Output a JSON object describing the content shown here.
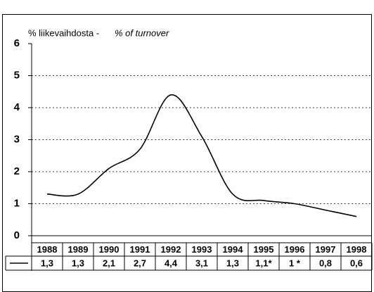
{
  "chart_data": {
    "type": "line",
    "title": "% liikevaihdosta -",
    "subtitle": "% of turnover",
    "categories": [
      "1988",
      "1989",
      "1990",
      "1991",
      "1992",
      "1993",
      "1994",
      "1995",
      "1996",
      "1997",
      "1998"
    ],
    "values": [
      1.3,
      1.3,
      2.1,
      2.7,
      4.4,
      3.1,
      1.3,
      1.1,
      1,
      0.8,
      0.6
    ],
    "value_labels": [
      "1,3",
      "1,3",
      "2,1",
      "2,7",
      "4,4",
      "3,1",
      "1,3",
      "1,1*",
      "1 *",
      "0,8",
      "0,6"
    ],
    "color": "#000000",
    "ylim": [
      0,
      6
    ],
    "yticks": [
      0,
      1,
      2,
      3,
      4,
      5,
      6
    ],
    "grid": true
  }
}
